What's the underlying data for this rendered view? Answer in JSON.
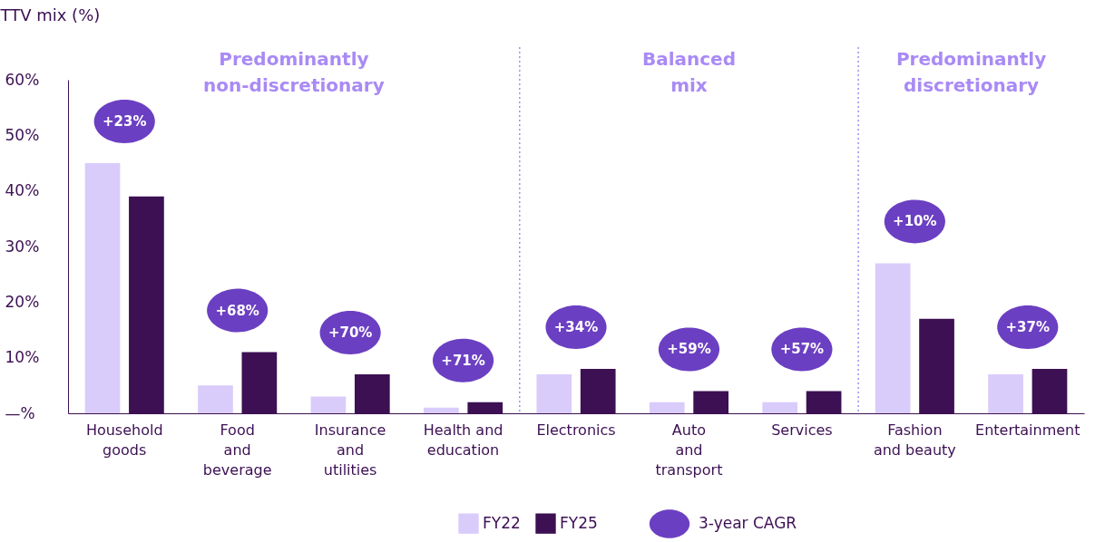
{
  "chart_data": {
    "type": "bar",
    "ylabel": "TTV mix (%)",
    "categories": [
      "Household\ngoods",
      "Food\nand\nbeverage",
      "Insurance\nand\nutilities",
      "Health and\neducation",
      "Electronics",
      "Auto\nand\ntransport",
      "Services",
      "Fashion\nand beauty",
      "Entertainment"
    ],
    "series": [
      {
        "name": "FY22",
        "color": "#d9ccfb",
        "values": [
          45,
          5,
          3,
          1,
          7,
          2,
          2,
          27,
          7
        ]
      },
      {
        "name": "FY25",
        "color": "#3c1053",
        "values": [
          39,
          11,
          7,
          2,
          8,
          4,
          4,
          17,
          8
        ]
      }
    ],
    "ylim": [
      0,
      60
    ],
    "yticks": [
      {
        "value": 0,
        "label": "—%"
      },
      {
        "value": 10,
        "label": "10%"
      },
      {
        "value": 20,
        "label": "20%"
      },
      {
        "value": 30,
        "label": "30%"
      },
      {
        "value": 40,
        "label": "40%"
      },
      {
        "value": 50,
        "label": "50%"
      },
      {
        "value": 60,
        "label": "60%"
      }
    ],
    "annotations": [
      "Predominantly\nnon-discretionary",
      "Balanced\nmix",
      "Predominantly\ndiscretionary",
      "+23%",
      "+68%",
      "+70%",
      "+71%",
      "+34%",
      "+59%",
      "+57%",
      "+10%",
      "+37%",
      "3-year CAGR"
    ],
    "grid": false,
    "legend": "bottom"
  }
}
